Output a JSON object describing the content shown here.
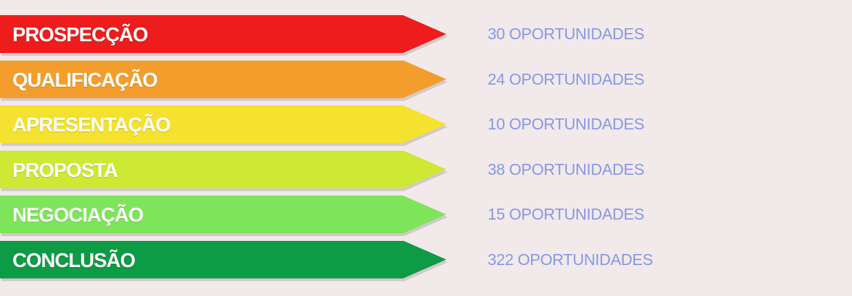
{
  "stages": [
    {
      "label": "PROSPECÇÃO",
      "count": "30 OPORTUNIDADES",
      "color": "#ee1c1c"
    },
    {
      "label": "QUALIFICAÇÃO",
      "count": "24 OPORTUNIDADES",
      "color": "#f39e2c"
    },
    {
      "label": "APRESENTAÇÃO",
      "count": "10 OPORTUNIDADES",
      "color": "#f5e12f"
    },
    {
      "label": "PROPOSTA",
      "count": "38 OPORTUNIDADES",
      "color": "#cde933"
    },
    {
      "label": "NEGOCIAÇÃO",
      "count": "15 OPORTUNIDADES",
      "color": "#7ee55a"
    },
    {
      "label": "CONCLUSÃO",
      "count": "322 OPORTUNIDADES",
      "color": "#0e9b45"
    }
  ]
}
